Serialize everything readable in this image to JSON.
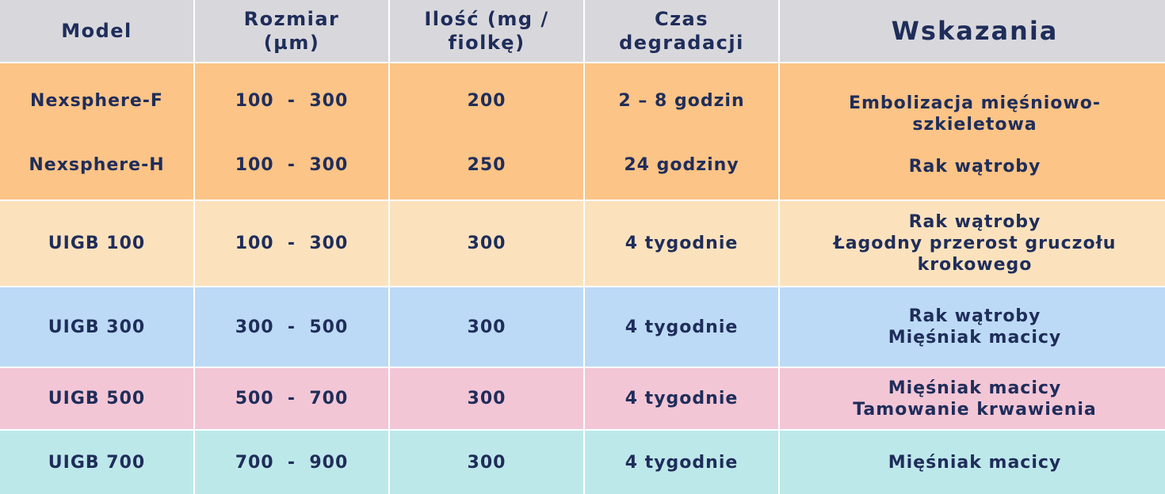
{
  "headers": [
    [
      "Model"
    ],
    [
      "Rozmiar",
      "(µm)"
    ],
    [
      "Ilość (mg /",
      "fiolkę)"
    ],
    [
      "Czas",
      "degradacji"
    ],
    [
      "Wskazania"
    ]
  ],
  "group_nexsphere": {
    "rows": [
      {
        "model": "Nexsphere-F",
        "size": "100  -  300",
        "amount": "200",
        "time": "2 – 8 godzin",
        "indications": [
          "Embolizacja mięśniowo-",
          "szkieletowa"
        ]
      },
      {
        "model": "Nexsphere-H",
        "size": "100  -  300",
        "amount": "250",
        "time": "24 godziny",
        "indications": [
          "Rak wątroby"
        ]
      }
    ]
  },
  "rows": [
    {
      "model": "UIGB 100",
      "size": "100  -  300",
      "amount": "300",
      "time": "4 tygodnie",
      "indications": [
        "Rak wątroby",
        "Łagodny przerost gruczołu",
        "krokowego"
      ]
    },
    {
      "model": "UIGB 300",
      "size": "300  -  500",
      "amount": "300",
      "time": "4 tygodnie",
      "indications": [
        "Rak wątroby",
        "Mięśniak macicy"
      ]
    },
    {
      "model": "UIGB 500",
      "size": "500  -  700",
      "amount": "300",
      "time": "4 tygodnie",
      "indications": [
        "Mięśniak macicy",
        "Tamowanie krwawienia"
      ]
    },
    {
      "model": "UIGB 700",
      "size": "700  -  900",
      "amount": "300",
      "time": "4 tygodnie",
      "indications": [
        "Mięśniak macicy"
      ]
    }
  ],
  "colors": {
    "header_bg": "#d8d8dc",
    "nexsphere_bg": "#fcc486",
    "uigb100_bg": "#fbe2bd",
    "uigb300_bg": "#bcdaf6",
    "uigb500_bg": "#f3c6d6",
    "uigb700_bg": "#bde8ea",
    "text": "#1f2d5a"
  }
}
